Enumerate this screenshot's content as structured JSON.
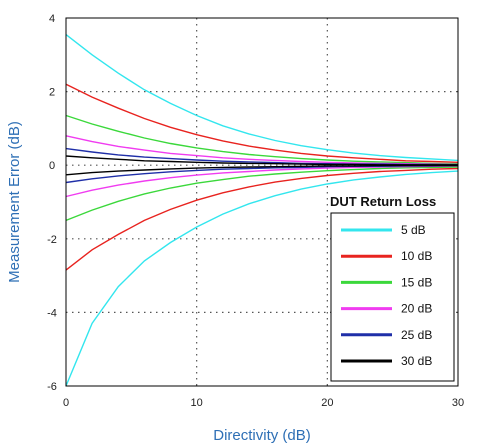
{
  "chart_data": {
    "type": "line",
    "title": "",
    "xlabel": "Directivity (dB)",
    "ylabel": "Measurement Error (dB)",
    "xlim": [
      0,
      30
    ],
    "ylim": [
      -6,
      4
    ],
    "xticks": [
      0,
      10,
      20,
      30
    ],
    "yticks": [
      -6,
      -4,
      -2,
      0,
      2,
      4
    ],
    "grid": "dotted",
    "legend": {
      "title": "DUT Return Loss",
      "position": "bottom-right"
    },
    "x": [
      0,
      2,
      4,
      6,
      8,
      10,
      12,
      14,
      16,
      18,
      20,
      22,
      24,
      26,
      28,
      30
    ],
    "series": [
      {
        "name": "5 dB",
        "color": "#33e6ee",
        "upper": [
          3.55,
          3.0,
          2.5,
          2.05,
          1.68,
          1.35,
          1.07,
          0.85,
          0.67,
          0.53,
          0.42,
          0.33,
          0.26,
          0.21,
          0.17,
          0.13
        ],
        "lower": [
          -6.0,
          -4.3,
          -3.3,
          -2.6,
          -2.1,
          -1.68,
          -1.33,
          -1.05,
          -0.83,
          -0.65,
          -0.51,
          -0.4,
          -0.32,
          -0.25,
          -0.2,
          -0.16
        ]
      },
      {
        "name": "10 dB",
        "color": "#e8231f",
        "upper": [
          2.2,
          1.85,
          1.55,
          1.27,
          1.03,
          0.83,
          0.66,
          0.52,
          0.41,
          0.32,
          0.25,
          0.2,
          0.16,
          0.12,
          0.1,
          0.08
        ],
        "lower": [
          -2.85,
          -2.3,
          -1.88,
          -1.5,
          -1.2,
          -0.95,
          -0.75,
          -0.59,
          -0.46,
          -0.36,
          -0.28,
          -0.22,
          -0.17,
          -0.14,
          -0.11,
          -0.09
        ]
      },
      {
        "name": "15 dB",
        "color": "#3bd83b",
        "upper": [
          1.35,
          1.12,
          0.92,
          0.74,
          0.59,
          0.47,
          0.37,
          0.29,
          0.23,
          0.18,
          0.14,
          0.11,
          0.09,
          0.07,
          0.05,
          0.04
        ],
        "lower": [
          -1.5,
          -1.22,
          -0.98,
          -0.78,
          -0.62,
          -0.49,
          -0.39,
          -0.3,
          -0.24,
          -0.19,
          -0.15,
          -0.12,
          -0.09,
          -0.07,
          -0.06,
          -0.05
        ]
      },
      {
        "name": "20 dB",
        "color": "#f03cf0",
        "upper": [
          0.8,
          0.64,
          0.51,
          0.41,
          0.32,
          0.26,
          0.2,
          0.16,
          0.13,
          0.1,
          0.08,
          0.06,
          0.05,
          0.04,
          0.03,
          0.02
        ],
        "lower": [
          -0.85,
          -0.68,
          -0.54,
          -0.43,
          -0.34,
          -0.27,
          -0.21,
          -0.17,
          -0.13,
          -0.1,
          -0.08,
          -0.06,
          -0.05,
          -0.04,
          -0.03,
          -0.02
        ]
      },
      {
        "name": "25 dB",
        "color": "#1f2fa8",
        "upper": [
          0.45,
          0.36,
          0.28,
          0.22,
          0.18,
          0.14,
          0.11,
          0.09,
          0.07,
          0.05,
          0.04,
          0.03,
          0.03,
          0.02,
          0.02,
          0.01
        ],
        "lower": [
          -0.47,
          -0.37,
          -0.29,
          -0.23,
          -0.18,
          -0.14,
          -0.11,
          -0.09,
          -0.07,
          -0.06,
          -0.04,
          -0.03,
          -0.03,
          -0.02,
          -0.02,
          -0.01
        ]
      },
      {
        "name": "30 dB",
        "color": "#000000",
        "upper": [
          0.25,
          0.2,
          0.16,
          0.12,
          0.1,
          0.08,
          0.06,
          0.05,
          0.04,
          0.03,
          0.02,
          0.02,
          0.01,
          0.01,
          0.01,
          0.01
        ],
        "lower": [
          -0.26,
          -0.2,
          -0.16,
          -0.13,
          -0.1,
          -0.08,
          -0.06,
          -0.05,
          -0.04,
          -0.03,
          -0.02,
          -0.02,
          -0.01,
          -0.01,
          -0.01,
          -0.01
        ]
      }
    ]
  }
}
